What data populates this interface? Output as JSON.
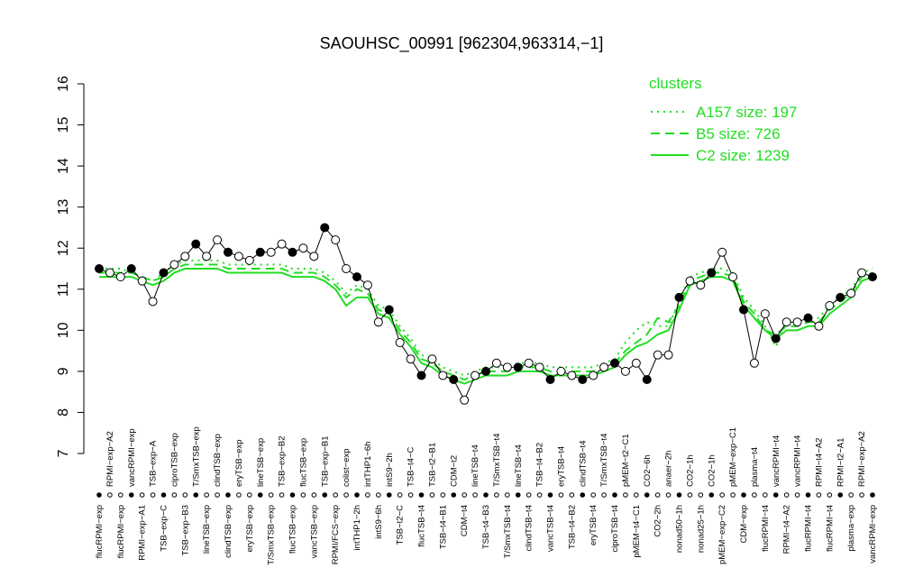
{
  "chart_data": {
    "type": "line",
    "title": "SAOUHSC_00991 [962304,963314,−1]",
    "legend_title": "clusters",
    "legend": "top-right",
    "categories": [
      "flucRPMI−exp",
      "RPMI−exp−A2",
      "flucRPMI−exp",
      "vancRPMI−exp",
      "RPMI−exp−A1",
      "TSB−exp−A",
      "TSB−exp−C",
      "ciproTSB−exp",
      "TSB−exp−B3",
      "T/SmxTSB−exp",
      "lineTSB−exp",
      "clindTSB−exp",
      "clindTSB−exp",
      "eryTSB−exp",
      "eryTSB−exp",
      "lineTSB−exp",
      "T/SmxTSB−exp",
      "TSB−exp−B2",
      "flucTSB−exp",
      "flucTSB−exp",
      "vancTSB−exp",
      "TSB−exp−B1",
      "RPMI/FCS−exp",
      "colist−exp",
      "intTHP1−2h",
      "intTHP1−6h",
      "intS9−6h",
      "intS9−2h",
      "TSB−t2−C",
      "TSB−t4−C",
      "flucTSB−t4",
      "TSB−t2−B1",
      "TSB−t4−B1",
      "CDM−t2",
      "CDM−t4",
      "lineTSB−t4",
      "TSB−t4−B3",
      "T/SmxTSB−t4",
      "T/SmxTSB−t4",
      "lineTSB−t4",
      "clindTSB−t4",
      "TSB−t4−B2",
      "vancTSB−t4",
      "eryTSB−t4",
      "TSB−t4−B2",
      "clindTSB−t4",
      "eryTSB−t4",
      "T/SmxTSB−t4",
      "ciproTSB−t4",
      "pMEM−t2−C1",
      "pMEM−t4−C1",
      "CO2−6h",
      "CO2−2h",
      "anaer−2h",
      "nonad50−1h",
      "CO2−1h",
      "nonad25−1h",
      "CO2−1h",
      "pMEM−exp−C2",
      "pMEM−exp−C1",
      "CDM−exp",
      "plasma−t4",
      "flucRPMI−t4",
      "vancRPMI−t4",
      "RPMI−t4−A2",
      "vancRPMI−t4",
      "flucRPMI−t4",
      "RPMI−t4−A2",
      "flucRPMI−t4",
      "RPMI−t2−A1",
      "plasma−exp",
      "RPMI−exp−A2",
      "vancRPMI−exp"
    ],
    "values": [
      11.5,
      11.4,
      11.3,
      11.5,
      11.2,
      10.7,
      11.4,
      11.6,
      11.8,
      12.1,
      11.8,
      12.2,
      11.9,
      11.8,
      11.7,
      11.9,
      11.9,
      12.1,
      11.9,
      12.0,
      11.8,
      12.5,
      12.2,
      11.5,
      11.3,
      11.1,
      10.2,
      10.5,
      9.7,
      9.3,
      8.9,
      9.3,
      8.9,
      8.8,
      8.3,
      8.9,
      9.0,
      9.2,
      9.1,
      9.1,
      9.2,
      9.1,
      8.8,
      9.0,
      8.9,
      8.8,
      8.9,
      9.1,
      9.2,
      9.0,
      9.2,
      8.8,
      9.4,
      9.4,
      10.8,
      11.2,
      11.1,
      11.4,
      11.9,
      11.3,
      10.5,
      9.2,
      10.4,
      9.8,
      10.2,
      10.2,
      10.3,
      10.1,
      10.6,
      10.8,
      10.9,
      11.4,
      11.3
    ],
    "series": [
      {
        "name": "A157 size: 197",
        "color": "#22dd22",
        "linestyle": "dotted",
        "values": [
          11.5,
          11.5,
          11.5,
          11.4,
          11.3,
          11.2,
          11.4,
          11.6,
          11.7,
          11.7,
          11.7,
          11.7,
          11.6,
          11.6,
          11.6,
          11.6,
          11.6,
          11.6,
          11.5,
          11.5,
          11.5,
          11.4,
          11.2,
          10.9,
          11.1,
          11.0,
          10.6,
          10.5,
          10.1,
          9.8,
          9.4,
          9.3,
          9.1,
          9.0,
          8.9,
          9.0,
          9.1,
          9.1,
          9.1,
          9.2,
          9.2,
          9.2,
          9.1,
          9.1,
          9.1,
          9.1,
          9.1,
          9.2,
          9.3,
          9.7,
          10.0,
          10.2,
          10.1,
          10.1,
          10.7,
          11.3,
          11.4,
          11.5,
          11.5,
          11.4,
          10.8,
          10.5,
          10.1,
          9.6,
          10.2,
          10.2,
          10.3,
          10.3,
          10.6,
          10.8,
          11.0,
          11.4,
          11.5
        ]
      },
      {
        "name": "B5 size: 726",
        "color": "#22dd22",
        "linestyle": "dashed",
        "values": [
          11.4,
          11.4,
          11.4,
          11.4,
          11.3,
          11.2,
          11.3,
          11.5,
          11.6,
          11.6,
          11.6,
          11.6,
          11.5,
          11.5,
          11.5,
          11.5,
          11.5,
          11.5,
          11.4,
          11.4,
          11.4,
          11.3,
          11.1,
          10.8,
          11.0,
          10.9,
          10.5,
          10.4,
          10.0,
          9.7,
          9.3,
          9.2,
          9.0,
          8.9,
          8.8,
          8.9,
          9.0,
          9.0,
          9.0,
          9.1,
          9.1,
          9.1,
          9.0,
          9.0,
          9.0,
          9.0,
          9.0,
          9.1,
          9.2,
          9.5,
          9.7,
          9.9,
          10.3,
          10.2,
          10.6,
          11.2,
          11.3,
          11.4,
          11.4,
          11.3,
          10.7,
          10.4,
          10.0,
          9.9,
          10.1,
          10.1,
          10.2,
          10.2,
          10.5,
          10.7,
          10.9,
          11.3,
          11.4
        ]
      },
      {
        "name": "C2 size: 1239",
        "color": "#22dd22",
        "linestyle": "solid",
        "values": [
          11.3,
          11.3,
          11.3,
          11.3,
          11.2,
          11.1,
          11.2,
          11.4,
          11.5,
          11.5,
          11.5,
          11.5,
          11.4,
          11.4,
          11.4,
          11.4,
          11.4,
          11.4,
          11.3,
          11.3,
          11.3,
          11.2,
          11.0,
          10.6,
          10.8,
          10.8,
          10.4,
          10.3,
          9.9,
          9.6,
          9.2,
          9.1,
          8.9,
          8.8,
          8.7,
          8.8,
          8.9,
          8.9,
          8.9,
          9.0,
          9.0,
          9.0,
          8.9,
          8.9,
          8.9,
          8.9,
          8.9,
          9.0,
          9.1,
          9.4,
          9.6,
          9.7,
          9.9,
          10.0,
          10.5,
          11.1,
          11.2,
          11.3,
          11.3,
          11.2,
          10.6,
          10.3,
          10.0,
          9.8,
          10.0,
          10.0,
          10.1,
          10.1,
          10.4,
          10.6,
          10.8,
          11.2,
          11.3
        ]
      }
    ],
    "ylim": [
      7,
      16
    ],
    "yticks": [
      7,
      8,
      9,
      10,
      11,
      12,
      13,
      14,
      15,
      16
    ]
  }
}
